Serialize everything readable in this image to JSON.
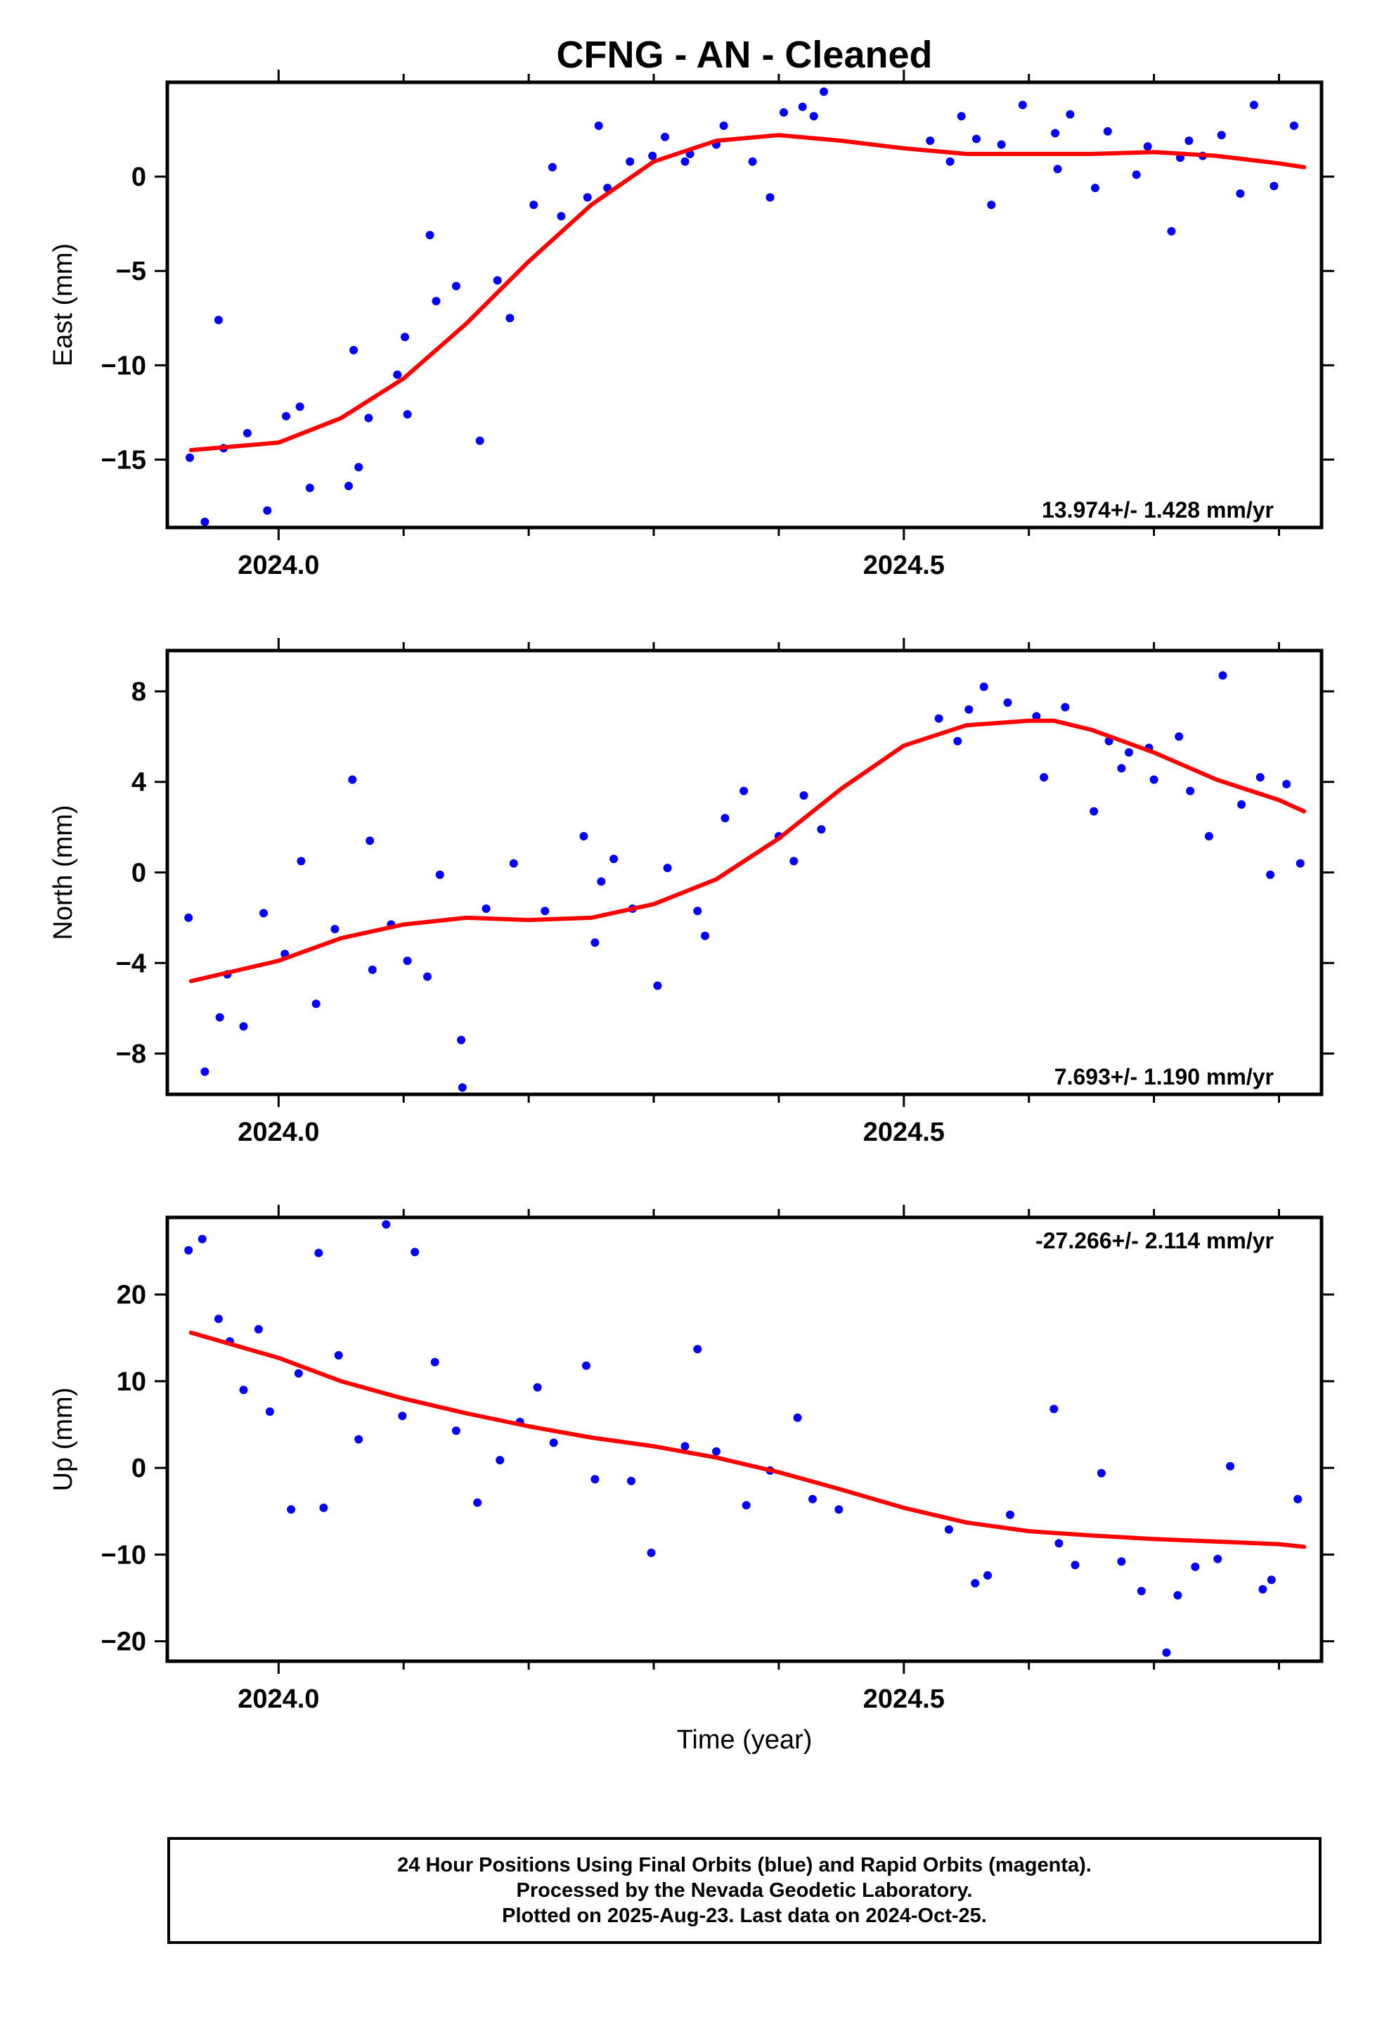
{
  "title": "CFNG  - AN - Cleaned",
  "xlabel": "Time (year)",
  "footer": {
    "line1": "24 Hour Positions Using Final Orbits (blue) and Rapid Orbits (magenta).",
    "line2": "Processed by the Nevada Geodetic Laboratory.",
    "line3": "Plotted on 2025-Aug-23. Last data on 2024-Oct-25."
  },
  "colors": {
    "data_points": "#0000ff",
    "fit_curve": "#ff0000",
    "frame": "#000000"
  },
  "chart_data": [
    {
      "type": "scatter",
      "name": "east",
      "ylabel": "East (mm)",
      "rate_text": "13.974+/- 1.428 mm/yr",
      "rate_position": "bottom-right",
      "xlim": [
        2023.911,
        2024.834
      ],
      "ylim": [
        -18.6,
        5.0
      ],
      "x_ticks": [
        2024.0,
        2024.5
      ],
      "x_tick_labels": [
        "2024.0",
        "2024.5"
      ],
      "y_ticks": [
        0,
        -5,
        -10,
        -15
      ],
      "y_tick_labels": [
        "0",
        "−5",
        "−10",
        "−15"
      ],
      "fit_curve": {
        "x": [
          2023.93,
          2024.0,
          2024.05,
          2024.1,
          2024.15,
          2024.2,
          2024.25,
          2024.3,
          2024.35,
          2024.4,
          2024.45,
          2024.5,
          2024.55,
          2024.6,
          2024.65,
          2024.7,
          2024.75,
          2024.8,
          2024.82
        ],
        "y": [
          -14.5,
          -14.1,
          -12.8,
          -10.7,
          -7.8,
          -4.5,
          -1.5,
          0.8,
          1.9,
          2.2,
          1.9,
          1.5,
          1.2,
          1.2,
          1.2,
          1.3,
          1.1,
          0.7,
          0.5
        ]
      },
      "points": {
        "x": [
          2023.929,
          2023.941,
          2023.952,
          2023.956,
          2023.975,
          2023.991,
          2024.006,
          2024.017,
          2024.025,
          2024.056,
          2024.06,
          2024.064,
          2024.072,
          2024.095,
          2024.101,
          2024.103,
          2024.121,
          2024.126,
          2024.142,
          2024.161,
          2024.175,
          2024.185,
          2024.204,
          2024.219,
          2024.226,
          2024.247,
          2024.256,
          2024.263,
          2024.281,
          2024.299,
          2024.309,
          2024.325,
          2024.329,
          2024.35,
          2024.356,
          2024.379,
          2024.393,
          2024.404,
          2024.419,
          2024.428,
          2024.436,
          2024.521,
          2024.537,
          2024.546,
          2024.558,
          2024.57,
          2024.578,
          2024.595,
          2024.621,
          2024.623,
          2024.633,
          2024.653,
          2024.663,
          2024.686,
          2024.695,
          2024.714,
          2024.721,
          2024.728,
          2024.739,
          2024.754,
          2024.769,
          2024.78,
          2024.796,
          2024.812
        ],
        "y": [
          -14.9,
          -18.3,
          -7.6,
          -14.4,
          -13.6,
          -17.7,
          -12.7,
          -12.2,
          -16.5,
          -16.4,
          -9.2,
          -15.4,
          -12.8,
          -10.5,
          -8.5,
          -12.6,
          -3.1,
          -6.6,
          -5.8,
          -14.0,
          -5.5,
          -7.5,
          -1.5,
          0.5,
          -2.1,
          -1.1,
          2.7,
          -0.6,
          0.8,
          1.1,
          2.1,
          0.8,
          1.2,
          1.7,
          2.7,
          0.8,
          -1.1,
          3.4,
          3.7,
          3.2,
          4.5,
          1.9,
          0.8,
          3.2,
          2.0,
          -1.5,
          1.7,
          3.8,
          2.3,
          0.4,
          3.3,
          -0.6,
          2.4,
          0.1,
          1.6,
          -2.9,
          1.0,
          1.9,
          1.1,
          2.2,
          -0.9,
          3.8,
          -0.5,
          2.7
        ]
      }
    },
    {
      "type": "scatter",
      "name": "north",
      "ylabel": "North (mm)",
      "rate_text": "7.693+/- 1.190 mm/yr",
      "rate_position": "bottom-right",
      "xlim": [
        2023.911,
        2024.834
      ],
      "ylim": [
        -9.8,
        9.8
      ],
      "x_ticks": [
        2024.0,
        2024.5
      ],
      "x_tick_labels": [
        "2024.0",
        "2024.5"
      ],
      "y_ticks": [
        8,
        4,
        0,
        -4,
        -8
      ],
      "y_tick_labels": [
        "8",
        "4",
        "0",
        "−4",
        "−8"
      ],
      "fit_curve": {
        "x": [
          2023.93,
          2024.0,
          2024.05,
          2024.1,
          2024.15,
          2024.2,
          2024.25,
          2024.3,
          2024.35,
          2024.4,
          2024.45,
          2024.5,
          2024.55,
          2024.6,
          2024.62,
          2024.65,
          2024.7,
          2024.75,
          2024.8,
          2024.82
        ],
        "y": [
          -4.8,
          -3.9,
          -2.9,
          -2.3,
          -2.0,
          -2.1,
          -2.0,
          -1.4,
          -0.3,
          1.5,
          3.7,
          5.6,
          6.5,
          6.7,
          6.7,
          6.3,
          5.3,
          4.1,
          3.2,
          2.7
        ]
      },
      "points": {
        "x": [
          2023.928,
          2023.941,
          2023.953,
          2023.959,
          2023.972,
          2023.988,
          2024.005,
          2024.018,
          2024.03,
          2024.045,
          2024.059,
          2024.073,
          2024.075,
          2024.09,
          2024.103,
          2024.119,
          2024.129,
          2024.146,
          2024.147,
          2024.166,
          2024.188,
          2024.213,
          2024.244,
          2024.253,
          2024.258,
          2024.268,
          2024.283,
          2024.303,
          2024.311,
          2024.335,
          2024.341,
          2024.357,
          2024.372,
          2024.4,
          2024.412,
          2024.42,
          2024.434,
          2024.528,
          2024.543,
          2024.552,
          2024.564,
          2024.583,
          2024.606,
          2024.612,
          2024.629,
          2024.652,
          2024.664,
          2024.674,
          2024.68,
          2024.696,
          2024.7,
          2024.72,
          2024.729,
          2024.744,
          2024.755,
          2024.77,
          2024.785,
          2024.793,
          2024.806,
          2024.817
        ],
        "y": [
          -2.0,
          -8.8,
          -6.4,
          -4.5,
          -6.8,
          -1.8,
          -3.6,
          0.5,
          -5.8,
          -2.5,
          4.1,
          1.4,
          -4.3,
          -2.3,
          -3.9,
          -4.6,
          -0.1,
          -7.4,
          -9.5,
          -1.6,
          0.4,
          -1.7,
          1.6,
          -3.1,
          -0.4,
          0.6,
          -1.6,
          -5.0,
          0.2,
          -1.7,
          -2.8,
          2.4,
          3.6,
          1.6,
          0.5,
          3.4,
          1.9,
          6.8,
          5.8,
          7.2,
          8.2,
          7.5,
          6.9,
          4.2,
          7.3,
          2.7,
          5.8,
          4.6,
          5.3,
          5.5,
          4.1,
          6.0,
          3.6,
          1.6,
          8.7,
          3.0,
          4.2,
          -0.1,
          3.9,
          0.4
        ]
      }
    },
    {
      "type": "scatter",
      "name": "up",
      "ylabel": "Up (mm)",
      "rate_text": "-27.266+/- 2.114 mm/yr",
      "rate_position": "top-right",
      "xlim": [
        2023.911,
        2024.834
      ],
      "ylim": [
        -22.3,
        28.9
      ],
      "x_ticks": [
        2024.0,
        2024.5
      ],
      "x_tick_labels": [
        "2024.0",
        "2024.5"
      ],
      "y_ticks": [
        20,
        10,
        0,
        -10,
        -20
      ],
      "y_tick_labels": [
        "20",
        "10",
        "0",
        "−10",
        "−20"
      ],
      "fit_curve": {
        "x": [
          2023.93,
          2024.0,
          2024.05,
          2024.1,
          2024.15,
          2024.2,
          2024.25,
          2024.3,
          2024.35,
          2024.4,
          2024.45,
          2024.5,
          2024.55,
          2024.6,
          2024.65,
          2024.7,
          2024.75,
          2024.8,
          2024.82
        ],
        "y": [
          15.6,
          12.7,
          10.0,
          8.0,
          6.3,
          4.8,
          3.5,
          2.5,
          1.2,
          -0.5,
          -2.5,
          -4.6,
          -6.3,
          -7.3,
          -7.8,
          -8.2,
          -8.5,
          -8.8,
          -9.1
        ]
      },
      "points": {
        "x": [
          2023.928,
          2023.939,
          2023.952,
          2023.961,
          2023.972,
          2023.984,
          2023.993,
          2024.01,
          2024.016,
          2024.032,
          2024.036,
          2024.048,
          2024.064,
          2024.086,
          2024.099,
          2024.109,
          2024.125,
          2024.142,
          2024.159,
          2024.177,
          2024.193,
          2024.207,
          2024.22,
          2024.246,
          2024.253,
          2024.282,
          2024.298,
          2024.325,
          2024.335,
          2024.35,
          2024.374,
          2024.393,
          2024.415,
          2024.427,
          2024.448,
          2024.536,
          2024.557,
          2024.567,
          2024.585,
          2024.62,
          2024.624,
          2024.637,
          2024.658,
          2024.674,
          2024.69,
          2024.71,
          2024.719,
          2024.733,
          2024.751,
          2024.761,
          2024.787,
          2024.794,
          2024.815
        ],
        "y": [
          25.1,
          26.4,
          17.2,
          14.6,
          9.0,
          16.0,
          6.5,
          -4.8,
          10.9,
          24.8,
          -4.6,
          13.0,
          3.3,
          28.1,
          6.0,
          24.9,
          12.2,
          4.3,
          -4.0,
          0.9,
          5.3,
          9.3,
          2.9,
          11.8,
          -1.3,
          -1.5,
          -9.8,
          2.5,
          13.7,
          1.9,
          -4.3,
          -0.3,
          5.8,
          -3.6,
          -4.8,
          -7.1,
          -13.3,
          -12.4,
          -5.4,
          6.8,
          -8.7,
          -11.2,
          -0.6,
          -10.8,
          -14.2,
          -21.3,
          -14.7,
          -11.4,
          -10.5,
          0.2,
          -14.0,
          -12.9,
          -3.6
        ]
      }
    }
  ]
}
